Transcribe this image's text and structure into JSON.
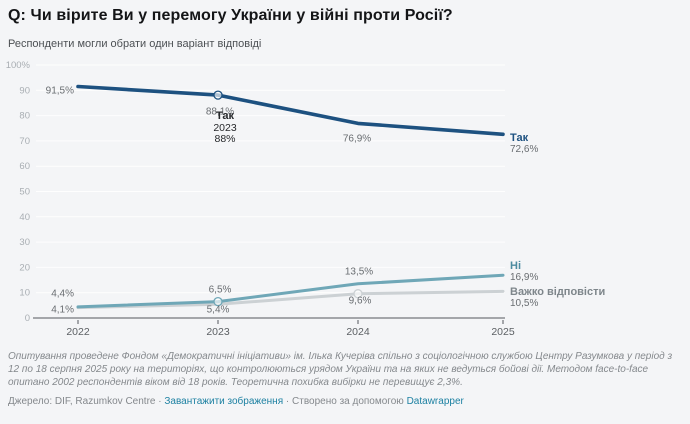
{
  "header": {
    "title": "Q: Чи вірите Ви у перемогу України у війні проти Росії?",
    "subtitle": "Респонденти могли обрати один варіант відповіді"
  },
  "chart_data": {
    "type": "line",
    "title": "Q: Чи вірите Ви у перемогу України у війні проти Росії?",
    "subtitle": "Респонденти могли обрати один варіант відповіді",
    "x": [
      2022,
      2023,
      2024,
      2025
    ],
    "x_ticks": [
      "2022",
      "2023",
      "2024",
      "2025"
    ],
    "y_ticks": [
      "100%",
      "90",
      "80",
      "70",
      "60",
      "50",
      "40",
      "30",
      "20",
      "10",
      "0"
    ],
    "ylim": [
      0,
      100
    ],
    "grid": true,
    "legend_position": "right-end",
    "series": [
      {
        "id": "tak",
        "name": "Так",
        "values": [
          91.5,
          88.1,
          76.9,
          72.6
        ],
        "labels": [
          "91,5%",
          "88,1%",
          "76,9%",
          "72,6%"
        ],
        "color": "#1d5180",
        "legend_color": "#1d5180"
      },
      {
        "id": "ni",
        "name": "Ні",
        "values": [
          4.4,
          6.5,
          13.5,
          16.9
        ],
        "labels": [
          "4,4%",
          "6,5%",
          "13,5%",
          "16,9%"
        ],
        "color": "#6fa7b7",
        "legend_color": "#4c8ba0"
      },
      {
        "id": "vazhko-vidpovisty",
        "name": "Важко відповісти",
        "values": [
          4.1,
          5.4,
          9.6,
          10.5
        ],
        "labels": [
          "4,1%",
          "5,4%",
          "9,6%",
          "10,5%"
        ],
        "color": "#ccd1d4",
        "legend_color": "#7e868b"
      }
    ],
    "highlighted_points": [
      {
        "series": 0,
        "x_index": 1
      },
      {
        "series": 1,
        "x_index": 1
      },
      {
        "series": 2,
        "x_index": 2
      }
    ]
  },
  "tooltip": {
    "series": "Так",
    "year": "2023",
    "value": "88%"
  },
  "footer": {
    "notes": "Опитування проведене Фондом «Демократичні ініціативи» ім. Ілька Кучеріва спільно з соціологічною службою Центру Разумкова у період з 12 по 18 серпня 2025 року на територіях, що контролюються урядом України та на яких не ведуться бойові дії. Методом face-to-face опитано 2002 респондентів віком від 18 років. Теоретична похибка вибірки не перевищує 2,3%."
  },
  "source": {
    "label": "Джерело: DIF, Razumkov Centre",
    "separator": "·",
    "download_label": "Завантажити зображення",
    "credit_text": "Створено за допомогою",
    "credit_link_label": "Datawrapper"
  },
  "colors": {
    "background": "#f4f5f7",
    "axis": "#54585c",
    "link": "#1d81a2",
    "data_label": "#696d71"
  }
}
